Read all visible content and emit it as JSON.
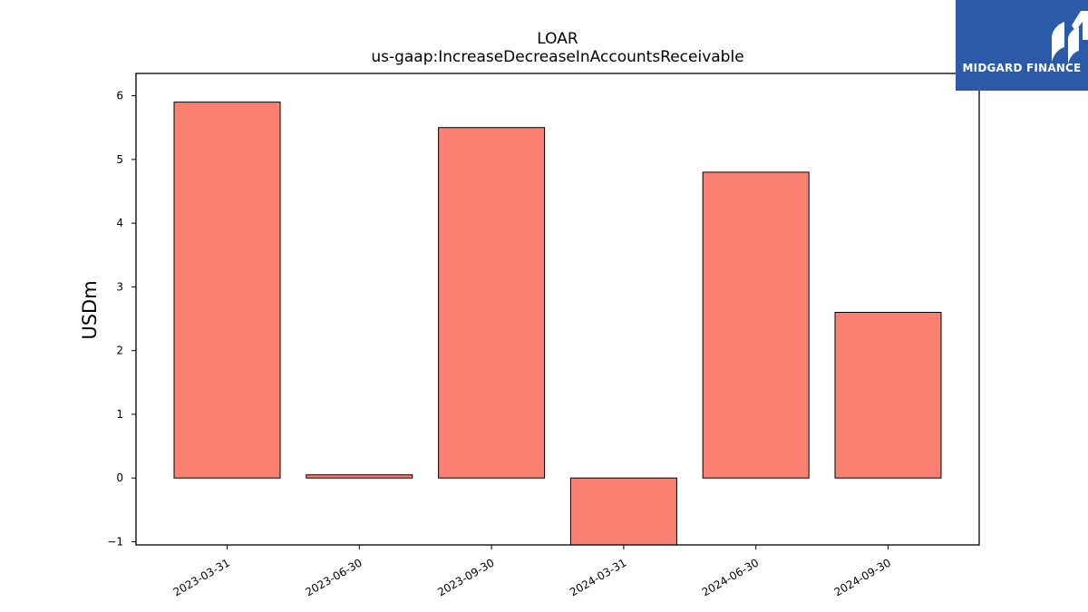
{
  "chart_data": {
    "type": "bar",
    "title": "LOAR",
    "subtitle": "us-gaap:IncreaseDecreaseInAccountsReceivable",
    "ylabel": "USDm",
    "xlabel": "",
    "categories": [
      "2023-03-31",
      "2023-06-30",
      "2023-09-30",
      "2024-03-31",
      "2024-06-30",
      "2024-09-30"
    ],
    "values": [
      5.9,
      0.05,
      5.5,
      -1.05,
      4.8,
      2.6
    ],
    "ylim": [
      -1.05,
      6.35
    ],
    "yticks": [
      -1,
      0,
      1,
      2,
      3,
      4,
      5,
      6
    ],
    "grid": false,
    "bar_color": "#fa8072",
    "edge_color": "#000000"
  },
  "logo": {
    "brand": "MIDGARD FINANCE",
    "background": "#2a5aa8"
  }
}
